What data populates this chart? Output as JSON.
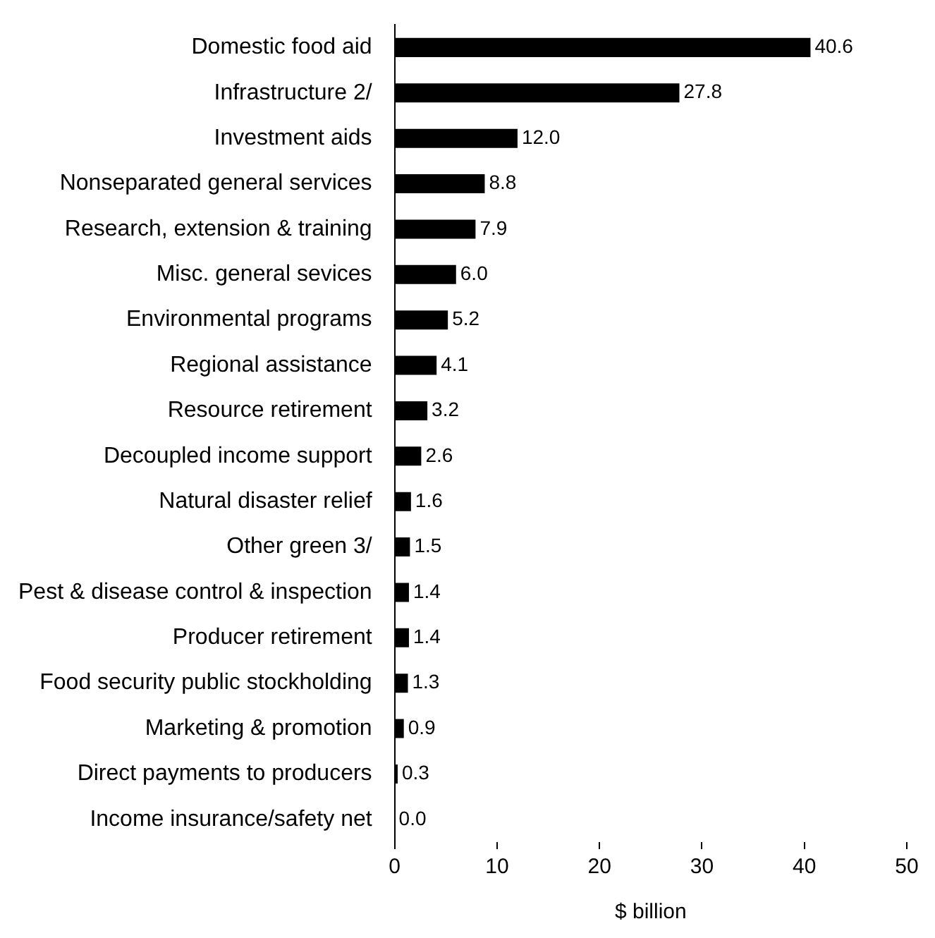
{
  "chart_data": {
    "type": "bar",
    "orientation": "horizontal",
    "xlabel": "$ billion",
    "categories": [
      "Domestic food aid",
      "Infrastructure 2/",
      "Investment aids",
      "Nonseparated general services",
      "Research, extension & training",
      "Misc. general sevices",
      "Environmental programs",
      "Regional assistance",
      "Resource retirement",
      "Decoupled income support",
      "Natural disaster relief",
      "Other green 3/",
      "Pest & disease control & inspection",
      "Producer retirement",
      "Food security public stockholding",
      "Marketing & promotion",
      "Direct payments to producers",
      "Income insurance/safety net"
    ],
    "values": [
      40.6,
      27.8,
      12.0,
      8.8,
      7.9,
      6.0,
      5.2,
      4.1,
      3.2,
      2.6,
      1.6,
      1.5,
      1.4,
      1.4,
      1.3,
      0.9,
      0.3,
      0.0
    ],
    "value_labels": [
      "40.6",
      "27.8",
      "12.0",
      "8.8",
      "7.9",
      "6.0",
      "5.2",
      "4.1",
      "3.2",
      "2.6",
      "1.6",
      "1.5",
      "1.4",
      "1.4",
      "1.3",
      "0.9",
      "0.3",
      "0.0"
    ],
    "color": "#000000",
    "xlim": [
      0,
      50
    ],
    "xticks": [
      0,
      10,
      20,
      30,
      40,
      50
    ],
    "grid": false,
    "legend": false
  }
}
